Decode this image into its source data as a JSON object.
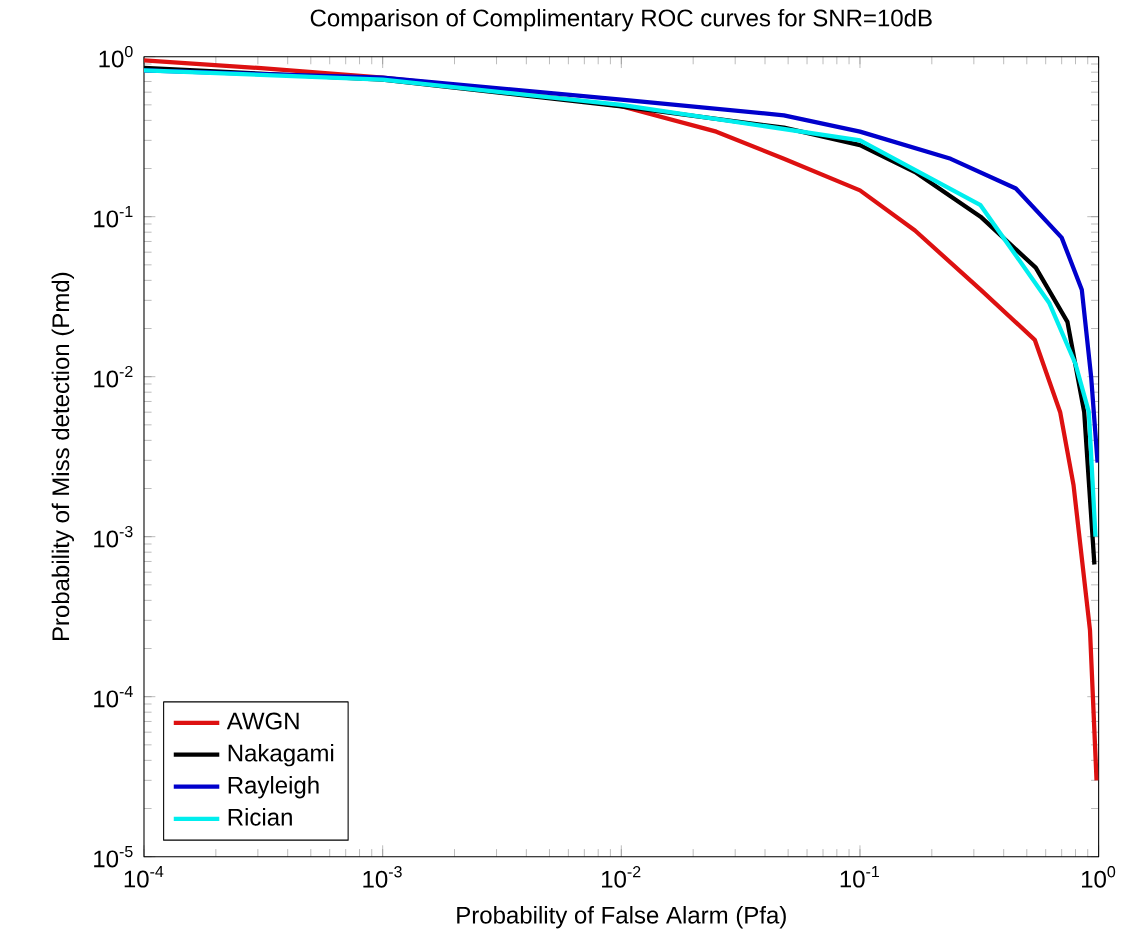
{
  "chart_data": {
    "type": "line",
    "title": "Comparison of Complimentary ROC curves for SNR=10dB",
    "xlabel": "Probability of False Alarm (Pfa)",
    "ylabel": "Probability of Miss detection (Pmd)",
    "log": "xy",
    "legend": "bottom left",
    "grid": false,
    "xlim": [
      0.0001,
      1
    ],
    "ylim": [
      1e-05,
      1
    ],
    "xticks": [
      {
        "value": 0.0001,
        "label": "10$^{-4}$"
      },
      {
        "value": 0.001,
        "label": "10$^{-3}$"
      },
      {
        "value": 0.01,
        "label": "10$^{-2}$"
      },
      {
        "value": 0.1,
        "label": "10$^{-1}$"
      },
      {
        "value": 1,
        "label": "10$^{0}$"
      }
    ],
    "yticks": [
      {
        "value": 1e-05,
        "label": "10$^{-5}$"
      },
      {
        "value": 0.0001,
        "label": "10$^{-4}$"
      },
      {
        "value": 0.001,
        "label": "10$^{-3}$"
      },
      {
        "value": 0.01,
        "label": "10$^{-2}$"
      },
      {
        "value": 0.1,
        "label": "10$^{-1}$"
      },
      {
        "value": 1,
        "label": "10$^{0}$"
      }
    ],
    "series": [
      {
        "name": "AWGN",
        "color": "#dd1111",
        "x": [
          0.0001,
          0.0003,
          0.001,
          0.003,
          0.01,
          0.025,
          0.048,
          0.1,
          0.17,
          0.32,
          0.54,
          0.69,
          0.785,
          0.92,
          0.98
        ],
        "values": [
          0.95,
          0.85,
          0.74,
          0.62,
          0.49,
          0.34,
          0.23,
          0.146,
          0.082,
          0.035,
          0.017,
          0.006,
          0.0021,
          0.00026,
          3e-05
        ]
      },
      {
        "name": "Nakagami",
        "color": "#000000",
        "x": [
          0.0001,
          0.001,
          0.01,
          0.048,
          0.1,
          0.17,
          0.32,
          0.545,
          0.74,
          0.87,
          0.96
        ],
        "values": [
          0.85,
          0.72,
          0.49,
          0.36,
          0.28,
          0.19,
          0.1,
          0.048,
          0.022,
          0.006,
          0.00067
        ]
      },
      {
        "name": "Rayleigh",
        "color": "#0000cc",
        "x": [
          0.0001,
          0.001,
          0.01,
          0.048,
          0.1,
          0.24,
          0.45,
          0.7,
          0.85,
          0.93,
          0.99
        ],
        "values": [
          0.82,
          0.74,
          0.54,
          0.43,
          0.34,
          0.23,
          0.15,
          0.074,
          0.035,
          0.01,
          0.0029
        ]
      },
      {
        "name": "Rician",
        "color": "#00eeee",
        "x": [
          0.0001,
          0.001,
          0.01,
          0.1,
          0.32,
          0.62,
          0.8,
          0.91,
          0.97
        ],
        "values": [
          0.82,
          0.72,
          0.5,
          0.3,
          0.118,
          0.029,
          0.012,
          0.006,
          0.001
        ]
      }
    ]
  }
}
